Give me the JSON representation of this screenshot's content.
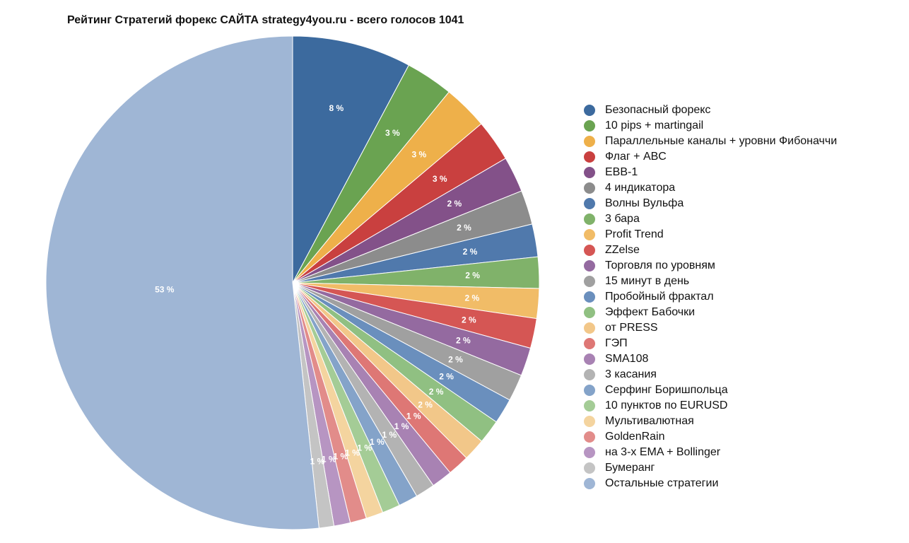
{
  "chart_data": {
    "type": "pie",
    "title": "Рейтинг Стратегий форекс САЙТА strategy4you.ru - всего голосов 1041",
    "slices": [
      {
        "name": "Безопасный форекс",
        "value": 8.0,
        "label": "8 %",
        "color": "#3c6a9e"
      },
      {
        "name": "10 pips + martingail",
        "value": 3.2,
        "label": "3 %",
        "color": "#6aa351"
      },
      {
        "name": "Параллельные каналы + уровни Фибоначчи",
        "value": 3.0,
        "label": "3 %",
        "color": "#eeb04a"
      },
      {
        "name": "Флаг + ABC",
        "value": 2.8,
        "label": "3 %",
        "color": "#c9403f"
      },
      {
        "name": "EBB-1",
        "value": 2.4,
        "label": "2 %",
        "color": "#835189"
      },
      {
        "name": "4 индикатора",
        "value": 2.3,
        "label": "2 %",
        "color": "#8c8c8c"
      },
      {
        "name": "Волны Вульфа",
        "value": 2.2,
        "label": "2 %",
        "color": "#5079ac"
      },
      {
        "name": "3 бара",
        "value": 2.1,
        "label": "2 %",
        "color": "#80b26a"
      },
      {
        "name": "Profit Trend",
        "value": 2.0,
        "label": "2 %",
        "color": "#f1bc67"
      },
      {
        "name": "ZZelse",
        "value": 2.0,
        "label": "2 %",
        "color": "#d55654"
      },
      {
        "name": "Торговля по уровням",
        "value": 1.9,
        "label": "2 %",
        "color": "#946aa0"
      },
      {
        "name": "15 минут в день",
        "value": 1.8,
        "label": "2 %",
        "color": "#a0a0a0"
      },
      {
        "name": "Пробойный фрактал",
        "value": 1.7,
        "label": "2 %",
        "color": "#6a8fbd"
      },
      {
        "name": "Эффект Бабочки",
        "value": 1.6,
        "label": "2 %",
        "color": "#90c082"
      },
      {
        "name": "от PRESS",
        "value": 1.5,
        "label": "2 %",
        "color": "#f2c789"
      },
      {
        "name": "ГЭП",
        "value": 1.45,
        "label": "1 %",
        "color": "#de7775"
      },
      {
        "name": "SMA108",
        "value": 1.4,
        "label": "1 %",
        "color": "#a882b3"
      },
      {
        "name": "3 касания",
        "value": 1.3,
        "label": "1 %",
        "color": "#b3b3b3"
      },
      {
        "name": "Серфинг Боришпольца",
        "value": 1.3,
        "label": "1 %",
        "color": "#84a3c9"
      },
      {
        "name": "10 пунктов по EURUSD",
        "value": 1.2,
        "label": "1 %",
        "color": "#a4cc96"
      },
      {
        "name": "Мультивалютная",
        "value": 1.15,
        "label": "1 %",
        "color": "#f4d49f"
      },
      {
        "name": "GoldenRain",
        "value": 1.1,
        "label": "1 %",
        "color": "#e28c8a"
      },
      {
        "name": "на 3-х EMA + Bollinger",
        "value": 1.1,
        "label": "1 %",
        "color": "#b795c2"
      },
      {
        "name": "Бумеранг",
        "value": 1.0,
        "label": "1 %",
        "color": "#c4c4c4"
      },
      {
        "name": "Остальные стратегии",
        "value": 53.0,
        "label": "53 %",
        "color": "#9fb6d5"
      }
    ]
  }
}
